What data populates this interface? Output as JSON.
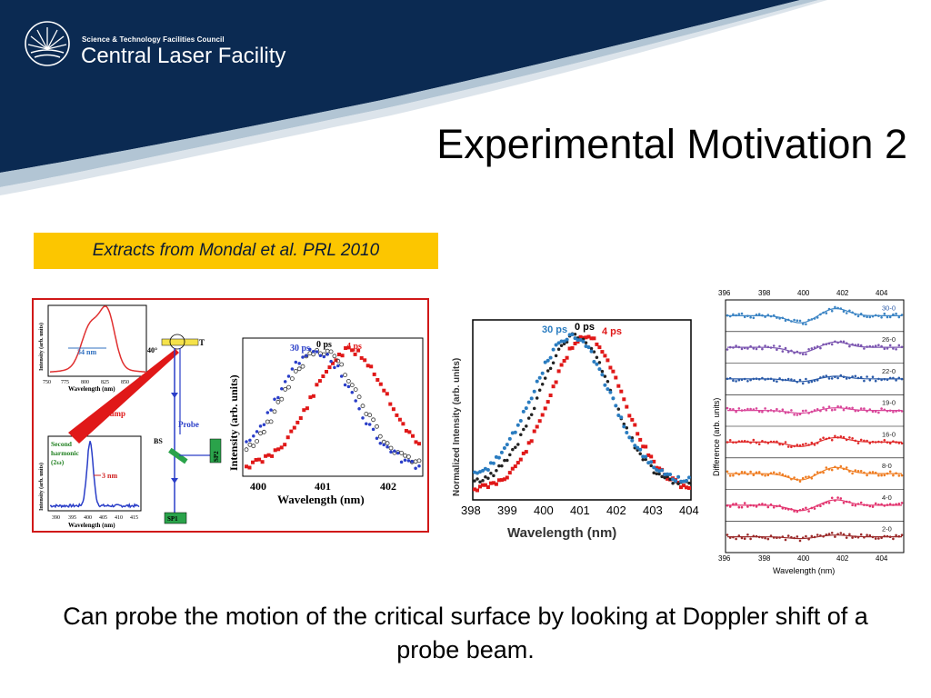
{
  "header": {
    "org_small": "Science & Technology Facilities Council",
    "org_big": "Central Laser Facility",
    "logo_icon": "stfc-sunburst-icon",
    "bg_color": "#0b2a52"
  },
  "title": "Experimental Motivation 2",
  "extract_label": "Extracts from Mondal et al. PRL 2010",
  "caption": "Can probe the motion of the critical surface by looking at Doppler shift of a probe beam.",
  "figure_left": {
    "inset_top": {
      "ylabel": "Intensity (arb. units)",
      "xlabel": "Wavelength (nm)",
      "xticks": [
        "750",
        "775",
        "800",
        "825",
        "850"
      ],
      "annotation": "34 nm"
    },
    "inset_bottom": {
      "ylabel": "Intensity (arb. units)",
      "xlabel": "Wavelength (nm)",
      "xticks": [
        "390",
        "395",
        "400",
        "405",
        "410",
        "415"
      ],
      "label_line1": "Second",
      "label_line2": "harmonic",
      "label_line3": "(2ω)",
      "annotation": "3 nm"
    },
    "setup": {
      "angle": "40°",
      "target": "T",
      "pump": "Pump",
      "probe": "Probe",
      "bs": "BS",
      "sp1": "SP1",
      "sp2": "SP2"
    },
    "spectra": {
      "ylabel": "Intensity (arb. units)",
      "xlabel": "Wavelength (nm)",
      "xticks": [
        "400",
        "401",
        "402"
      ],
      "legend": [
        "30 ps",
        "0 ps",
        "4 ps"
      ]
    }
  },
  "figure_middle": {
    "ylabel": "Normalized Intensity (arb. units)",
    "xlabel": "Wavelength (nm)",
    "xticks": [
      "398",
      "399",
      "400",
      "401",
      "402",
      "403",
      "404"
    ],
    "legend": [
      "30 ps",
      "0 ps",
      "4 ps"
    ]
  },
  "figure_right": {
    "ylabel": "Difference (arb. units)",
    "xlabel": "Wavelength (nm)",
    "xticks_top": [
      "396",
      "398",
      "400",
      "402",
      "404"
    ],
    "xticks_bottom": [
      "396",
      "398",
      "400",
      "402",
      "404"
    ],
    "traces": [
      {
        "label": "30-0",
        "color": "#3b84c4"
      },
      {
        "label": "26-0",
        "color": "#7b55b0"
      },
      {
        "label": "22-0",
        "color": "#2a5aa8"
      },
      {
        "label": "19-0",
        "color": "#d9479a"
      },
      {
        "label": "16-0",
        "color": "#e02a2a"
      },
      {
        "label": "8-0",
        "color": "#ef7d22"
      },
      {
        "label": "4-0",
        "color": "#e2336e"
      },
      {
        "label": "2-0",
        "color": "#9b2a2a"
      }
    ]
  }
}
